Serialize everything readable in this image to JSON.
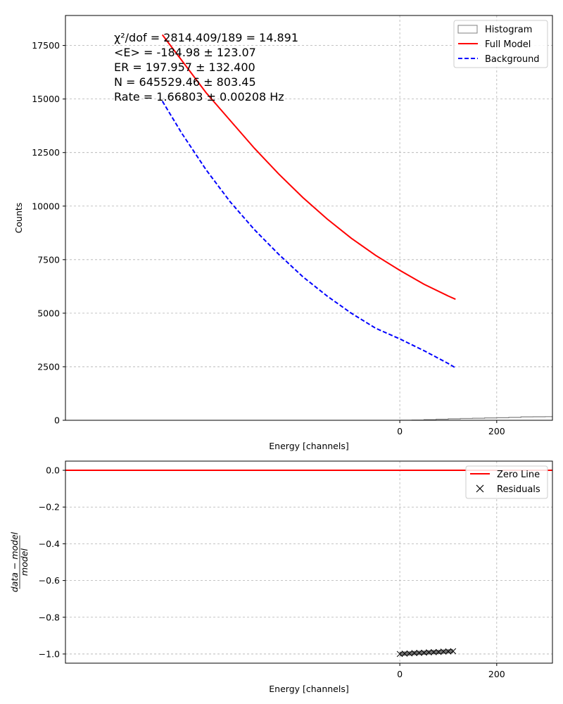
{
  "chart_data": [
    {
      "type": "line",
      "xlabel": "Energy [channels]",
      "ylabel": "Counts",
      "xlim": [
        -690,
        315
      ],
      "ylim": [
        0,
        18900
      ],
      "xticks": [
        0,
        200
      ],
      "yticks": [
        0,
        2500,
        5000,
        7500,
        10000,
        12500,
        15000,
        17500
      ],
      "ytick_labels": [
        "0",
        "2500",
        "5000",
        "7500",
        "10000",
        "12500",
        "15000",
        "17500"
      ],
      "grid": true,
      "legend_position": "top-right",
      "annotations": [
        "χ²/dof = 2814.409/189 = 14.891",
        "<E> = -184.98 ± 123.07",
        "ER = 197.957 ± 132.400",
        "N = 645529.46 ± 803.45",
        "Rate = 1.66803 ± 0.00208 Hz"
      ],
      "series": [
        {
          "name": "Histogram",
          "style": "step",
          "color": "#808080",
          "x": [
            0,
            25,
            50,
            75,
            100,
            125,
            150,
            175,
            200,
            225,
            250,
            275,
            300,
            315
          ],
          "y": [
            0,
            10,
            30,
            50,
            70,
            85,
            95,
            110,
            120,
            135,
            160,
            165,
            170,
            175
          ]
        },
        {
          "name": "Full Model",
          "style": "solid",
          "color": "#ff0000",
          "x": [
            -490,
            -450,
            -400,
            -350,
            -300,
            -250,
            -200,
            -150,
            -100,
            -50,
            0,
            50,
            100,
            115
          ],
          "y": [
            18000,
            16800,
            15300,
            14000,
            12700,
            11500,
            10400,
            9400,
            8500,
            7700,
            7000,
            6350,
            5800,
            5650
          ]
        },
        {
          "name": "Background",
          "style": "dashed",
          "color": "#0000ff",
          "x": [
            -490,
            -450,
            -400,
            -350,
            -300,
            -250,
            -200,
            -150,
            -100,
            -50,
            0,
            50,
            100,
            115
          ],
          "y": [
            14900,
            13400,
            11700,
            10200,
            8900,
            7750,
            6700,
            5800,
            5000,
            4300,
            3800,
            3250,
            2650,
            2450
          ]
        }
      ]
    },
    {
      "type": "scatter",
      "xlabel": "Energy [channels]",
      "ylabel": "(data − model) / model",
      "xlim": [
        -690,
        315
      ],
      "ylim": [
        -1.05,
        0.05
      ],
      "xticks": [
        0,
        200
      ],
      "yticks": [
        0.0,
        -0.2,
        -0.4,
        -0.6,
        -0.8,
        -1.0
      ],
      "ytick_labels": [
        "0.0",
        "−0.2",
        "−0.4",
        "−0.6",
        "−0.8",
        "−1.0"
      ],
      "grid": true,
      "legend_position": "top-right",
      "series": [
        {
          "name": "Zero Line",
          "style": "solid",
          "color": "#ff0000",
          "x": [
            -690,
            315
          ],
          "y": [
            0,
            0
          ]
        },
        {
          "name": "Residuals",
          "style": "marker-x",
          "color": "#000000",
          "x": [
            0,
            10,
            20,
            30,
            40,
            50,
            60,
            70,
            80,
            90,
            100,
            110
          ],
          "y": [
            -1.0,
            -0.998,
            -0.997,
            -0.995,
            -0.994,
            -0.993,
            -0.991,
            -0.99,
            -0.989,
            -0.987,
            -0.986,
            -0.985
          ]
        }
      ]
    }
  ]
}
